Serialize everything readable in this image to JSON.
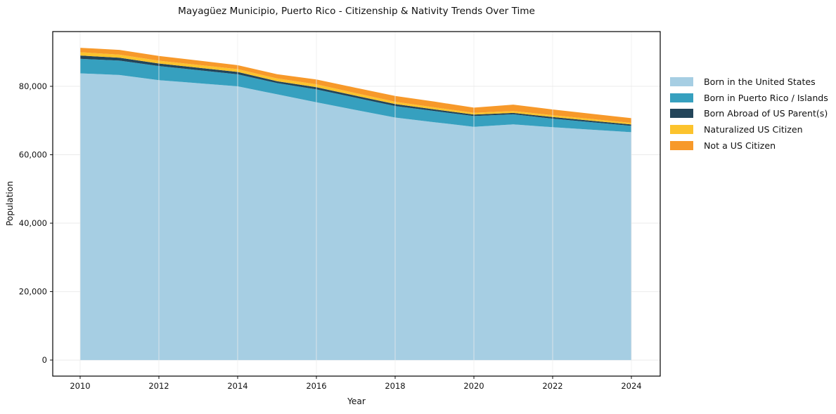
{
  "chart_data": {
    "type": "area",
    "stacked": true,
    "title": "Mayagüez Municipio, Puerto Rico - Citizenship & Nativity Trends Over Time",
    "xlabel": "Year",
    "ylabel": "Population",
    "x": [
      2010,
      2011,
      2012,
      2013,
      2014,
      2015,
      2016,
      2017,
      2018,
      2019,
      2020,
      2021,
      2022,
      2023,
      2024
    ],
    "series": [
      {
        "name": "Born in the United States",
        "color": "#a6cee3",
        "values": [
          83800,
          83300,
          81800,
          80900,
          80000,
          77670,
          75330,
          73100,
          70870,
          69500,
          68160,
          68870,
          68050,
          67300,
          66590
        ]
      },
      {
        "name": "Born in Puerto Rico / Islands",
        "color": "#36a0bf",
        "values": [
          4250,
          4200,
          4120,
          3810,
          3500,
          3280,
          3780,
          3560,
          3380,
          3260,
          3150,
          2950,
          2500,
          2180,
          1850
        ]
      },
      {
        "name": "Born Abroad of US Parent(s)",
        "color": "#23455a",
        "values": [
          960,
          850,
          750,
          725,
          700,
          540,
          620,
          590,
          560,
          490,
          420,
          410,
          480,
          450,
          410
        ]
      },
      {
        "name": "Naturalized US Citizen",
        "color": "#fcc32d",
        "values": [
          970,
          900,
          820,
          825,
          830,
          820,
          860,
          770,
          680,
          600,
          530,
          560,
          550,
          510,
          470
        ]
      },
      {
        "name": "Not a US Citizen",
        "color": "#f7992a",
        "values": [
          1290,
          1400,
          1380,
          1265,
          1150,
          1230,
          1400,
          1560,
          1700,
          1680,
          1500,
          1860,
          1650,
          1520,
          1380
        ]
      }
    ],
    "x_ticks": [
      2010,
      2012,
      2014,
      2016,
      2018,
      2020,
      2022,
      2024
    ],
    "y_ticks": [
      {
        "value": 0,
        "label": "0"
      },
      {
        "value": 20000,
        "label": "20,000"
      },
      {
        "value": 40000,
        "label": "40,000"
      },
      {
        "value": 60000,
        "label": "60,000"
      },
      {
        "value": 80000,
        "label": "80,000"
      }
    ],
    "xlim": [
      2009.304,
      2024.732
    ],
    "ylim": [
      -4700,
      96000
    ],
    "grid": true,
    "legend_position": "right"
  }
}
